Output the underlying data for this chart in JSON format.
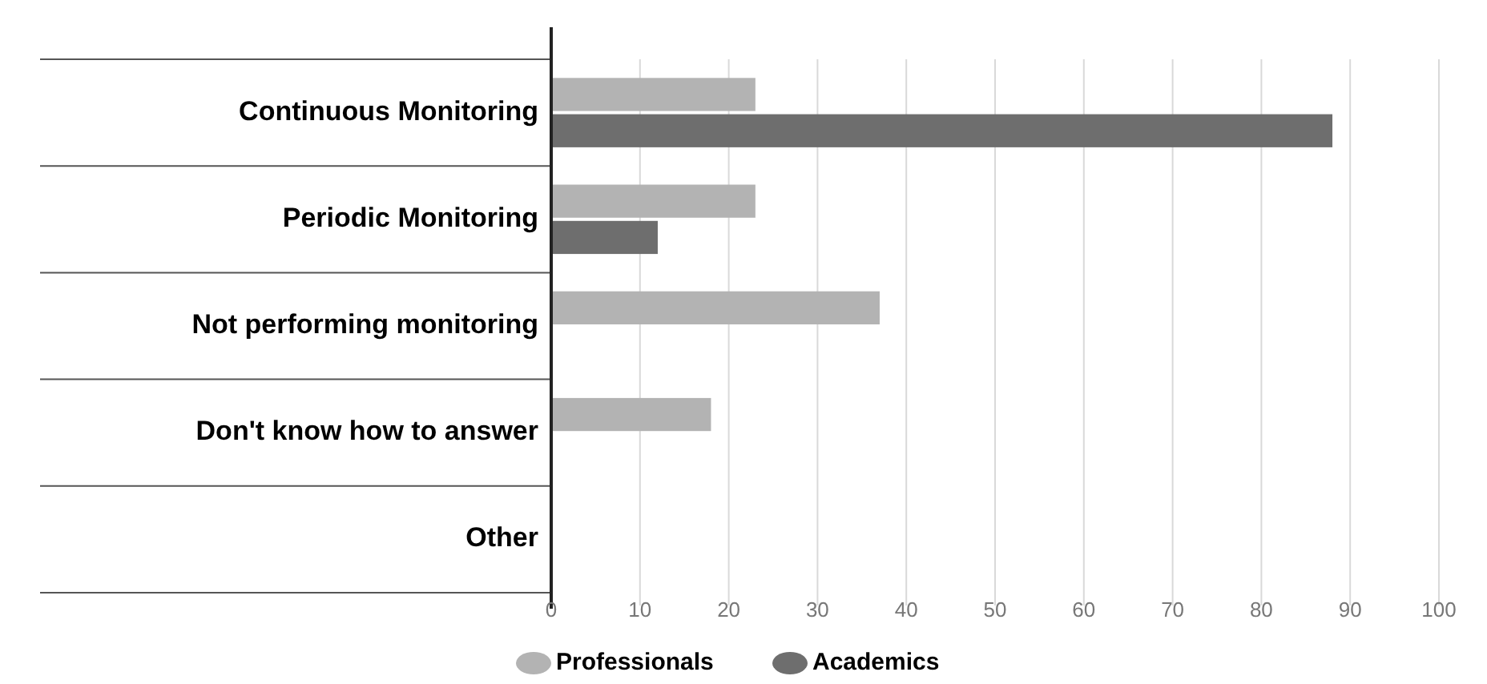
{
  "chart_data": {
    "type": "bar",
    "orientation": "horizontal",
    "categories": [
      "Continuous Monitoring",
      "Periodic Monitoring",
      "Not performing monitoring",
      "Don't know how to answer",
      "Other"
    ],
    "series": [
      {
        "name": "Professionals",
        "color": "#b3b3b3",
        "values": [
          23,
          23,
          37,
          18,
          0
        ]
      },
      {
        "name": "Academics",
        "color": "#6e6e6e",
        "values": [
          88,
          12,
          0,
          0,
          0
        ]
      }
    ],
    "xlim": [
      0,
      100
    ],
    "xticks": [
      0,
      10,
      20,
      30,
      40,
      50,
      60,
      70,
      80,
      90,
      100
    ],
    "grid": "x",
    "legend": "bottom"
  }
}
